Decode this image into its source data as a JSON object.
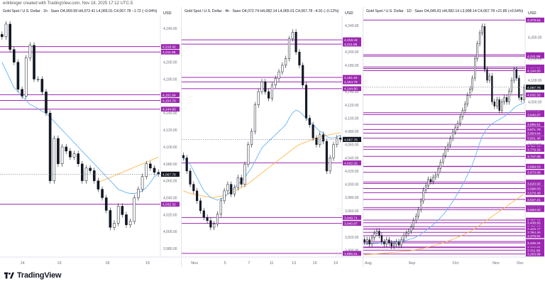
{
  "header": {
    "text": "erikbreger created with TradingView.com, Nov 18, 2025 17:12 UTC-5"
  },
  "footer": {
    "logo_text": "TradingView"
  },
  "colors": {
    "bull": "#ffffff",
    "bear": "#131722",
    "level": "#9c27b0",
    "label_bg": "#9c27b0",
    "ma_fast": "#64b5f6",
    "ma_slow": "#ffb74d",
    "price_bg": "#131722"
  },
  "chart_data": [
    {
      "type": "candlestick",
      "title": "Gold Spot / U.S. Dollar · 1h · Saxo",
      "ohlc_text": "O4,069.99 H4,072.41 L4,065.01 C4,067.78 −1.72 (−0.04%)",
      "currency": "USD",
      "ylim": [
        3970,
        4255
      ],
      "y_ticks": [
        4240,
        4220,
        4200,
        4180,
        4160,
        4140,
        4120,
        4100,
        4080,
        4060,
        4040,
        4020,
        4000,
        3980
      ],
      "x_ticks": [
        {
          "label": "14",
          "pos": 0.14
        },
        {
          "label": "16",
          "pos": 0.37
        },
        {
          "label": "18",
          "pos": 0.67
        },
        {
          "label": "19",
          "pos": 0.92
        }
      ],
      "levels": [
        4218.42,
        4211.99,
        4161.64,
        4154.79,
        4144.6,
        4032.32
      ],
      "last_price": 4067.78,
      "close_path": [
        4230,
        4245,
        4215,
        4200,
        4168,
        4160,
        4205,
        4220,
        4180,
        4180,
        4165,
        4140,
        4060,
        4110,
        4080,
        4100,
        4095,
        4088,
        4092,
        4080,
        4060,
        4075,
        4072,
        4060,
        4050,
        4040,
        4025,
        4005,
        4010,
        4030,
        4020,
        4008,
        4012,
        4040,
        4050,
        4065,
        4080,
        4075,
        4070,
        4068
      ],
      "ma_fast_path": [
        4200,
        4190,
        4180,
        4170,
        4165,
        4160,
        4155,
        4150,
        4148,
        4145,
        4142,
        4140,
        4135,
        4130,
        4125,
        4120,
        4115,
        4110,
        4105,
        4100,
        4095,
        4090,
        4085,
        4080,
        4075,
        4070,
        4065,
        4060,
        4055,
        4050,
        4048,
        4046,
        4045,
        4045,
        4046,
        4048,
        4052,
        4058,
        4065,
        4068
      ],
      "ma_slow_path": [
        null,
        null,
        null,
        null,
        null,
        null,
        null,
        null,
        null,
        null,
        null,
        null,
        null,
        null,
        null,
        null,
        null,
        null,
        null,
        null,
        null,
        null,
        null,
        null,
        4058,
        4060,
        4062,
        4064,
        4066,
        4068,
        4070,
        4072,
        4074,
        4076,
        4078,
        4080,
        4082,
        4084,
        4086,
        4088
      ]
    },
    {
      "type": "candlestick",
      "title": "Gold Spot / U.S. Dollar · 4h · Saxo",
      "ohlc_text": "O4,072.74 H4,082.14 L4,065.01 C4,067.78 −4.91 (−0.12%)",
      "currency": "USD",
      "ylim": [
        3890,
        4255
      ],
      "y_ticks": [
        4240,
        4220,
        4200,
        4180,
        4160,
        4140,
        4120,
        4100,
        4080,
        4060,
        4040,
        4020,
        4000,
        3980,
        3960,
        3940,
        3920,
        3900
      ],
      "x_ticks": [
        {
          "label": "Nov",
          "pos": 0.08
        },
        {
          "label": "5",
          "pos": 0.27
        },
        {
          "label": "7",
          "pos": 0.42
        },
        {
          "label": "11",
          "pos": 0.56
        },
        {
          "label": "13",
          "pos": 0.7
        },
        {
          "label": "16",
          "pos": 0.83
        },
        {
          "label": "19",
          "pos": 0.96
        }
      ],
      "levels": [
        4218.42,
        4211.99,
        4161.64,
        4154.79,
        4144.6,
        4032.32,
        3949.71,
        3940.87,
        3895.51
      ],
      "last_price": 4067.78,
      "close_path": [
        4040,
        4020,
        4000,
        3990,
        3975,
        3960,
        3950,
        3945,
        3935,
        3940,
        3955,
        3975,
        3990,
        4000,
        3985,
        3995,
        4010,
        4000,
        4030,
        4060,
        4080,
        4120,
        4140,
        4155,
        4140,
        4130,
        4150,
        4160,
        4170,
        4180,
        4190,
        4220,
        4230,
        4200,
        4180,
        4150,
        4100,
        4090,
        4070,
        4060,
        4075,
        4065,
        4020,
        4040,
        4060,
        4070,
        4068
      ],
      "ma_fast_path": [
        4040,
        4035,
        4030,
        4020,
        4010,
        4000,
        3990,
        3985,
        3980,
        3978,
        3976,
        3978,
        3980,
        3985,
        3990,
        3995,
        4000,
        4005,
        4010,
        4018,
        4025,
        4035,
        4045,
        4055,
        4060,
        4065,
        4070,
        4075,
        4080,
        4085,
        4090,
        4100,
        4108,
        4112,
        4110,
        4105,
        4100,
        4095,
        4090,
        4085,
        4080,
        4078,
        4072,
        4070,
        4070,
        4072,
        4074
      ],
      "ma_slow_path": [
        3990,
        3988,
        3986,
        3985,
        3984,
        3983,
        3982,
        3981,
        3980,
        3980,
        3981,
        3982,
        3983,
        3985,
        3987,
        3990,
        3992,
        3995,
        3998,
        4001,
        4005,
        4009,
        4013,
        4017,
        4021,
        4025,
        4029,
        4033,
        4037,
        4041,
        4045,
        4049,
        4053,
        4057,
        4060,
        4062,
        4064,
        4066,
        4068,
        4070,
        4072,
        4073,
        4074,
        4075,
        4076,
        4077,
        4078
      ]
    },
    {
      "type": "candlestick",
      "title": "Gold Spot / U.S. Dollar · 1D · Saxo",
      "ohlc_text": "O4,045.81 H4,082.14 L3,998.14 C4,067.78 +21.85 (+0.54%)",
      "currency": "USD",
      "ylim": [
        3280,
        4400
      ],
      "y_ticks": [
        4300,
        4200,
        4100,
        4000,
        3900,
        3800,
        3700,
        3600,
        3500,
        3400,
        3300
      ],
      "x_ticks": [
        {
          "label": "Aug",
          "pos": 0.03
        },
        {
          "label": "Sep",
          "pos": 0.3
        },
        {
          "label": "Oct",
          "pos": 0.57
        },
        {
          "label": "Nov",
          "pos": 0.82
        },
        {
          "label": "Dec",
          "pos": 0.97
        }
      ],
      "levels": [
        4379.54,
        4218.42,
        4211.99,
        4161.64,
        4154.79,
        4144.6,
        4032.32,
        3949.71,
        3940.87,
        3895.51,
        3871.79,
        3854.64,
        3831.45,
        3791.16,
        3779.34,
        3747.05,
        3701.02,
        3699.53,
        3673.06,
        3628.11,
        3620.93,
        3598.03,
        3578.49,
        3547.21,
        3508.7,
        3500.02,
        3451.15,
        3438.93,
        3421.1,
        3410.5,
        3409.27,
        3394.45,
        3378.91,
        3352.18,
        3345.31,
        3326.38,
        3323.55,
        3311.6,
        3293.99
      ],
      "last_price": 4067.78,
      "close_path": [
        3350,
        3360,
        3340,
        3370,
        3390,
        3400,
        3380,
        3350,
        3340,
        3360,
        3345,
        3330,
        3340,
        3350,
        3335,
        3360,
        3380,
        3390,
        3400,
        3420,
        3450,
        3470,
        3500,
        3540,
        3590,
        3610,
        3640,
        3630,
        3650,
        3660,
        3690,
        3720,
        3750,
        3780,
        3800,
        3830,
        3860,
        3880,
        3900,
        3930,
        3960,
        3990,
        4030,
        4060,
        4110,
        4200,
        4270,
        4320,
        4350,
        4150,
        4100,
        4120,
        4000,
        3980,
        4010,
        3960,
        4000,
        4020,
        4000,
        4050,
        4100,
        4150,
        4110,
        4020,
        4010,
        4067
      ],
      "ma_fast_path": [
        3340,
        3340,
        3341,
        3341,
        3342,
        3343,
        3344,
        3345,
        3346,
        3347,
        3348,
        3349,
        3350,
        3351,
        3352,
        3354,
        3356,
        3358,
        3361,
        3364,
        3368,
        3373,
        3379,
        3386,
        3394,
        3403,
        3412,
        3421,
        3430,
        3440,
        3451,
        3463,
        3476,
        3490,
        3505,
        3521,
        3538,
        3556,
        3575,
        3595,
        3616,
        3638,
        3661,
        3685,
        3710,
        3740,
        3775,
        3810,
        3840,
        3860,
        3875,
        3888,
        3898,
        3905,
        3912,
        3918,
        3925,
        3932,
        3940,
        3950,
        3960,
        3972,
        3980,
        3986,
        3990,
        3995
      ],
      "ma_slow_path": [
        3290,
        3291,
        3292,
        3293,
        3294,
        3295,
        3296,
        3297,
        3298,
        3299,
        3300,
        3301,
        3302,
        3303,
        3304,
        3305,
        3306,
        3307,
        3308,
        3310,
        3312,
        3314,
        3316,
        3318,
        3320,
        3323,
        3326,
        3329,
        3332,
        3335,
        3338,
        3342,
        3346,
        3350,
        3354,
        3358,
        3362,
        3367,
        3372,
        3377,
        3382,
        3387,
        3393,
        3399,
        3405,
        3412,
        3420,
        3428,
        3436,
        3444,
        3452,
        3460,
        3468,
        3476,
        3484,
        3492,
        3500,
        3508,
        3516,
        3524,
        3532,
        3540,
        3548,
        3556,
        3564,
        3572
      ]
    }
  ]
}
